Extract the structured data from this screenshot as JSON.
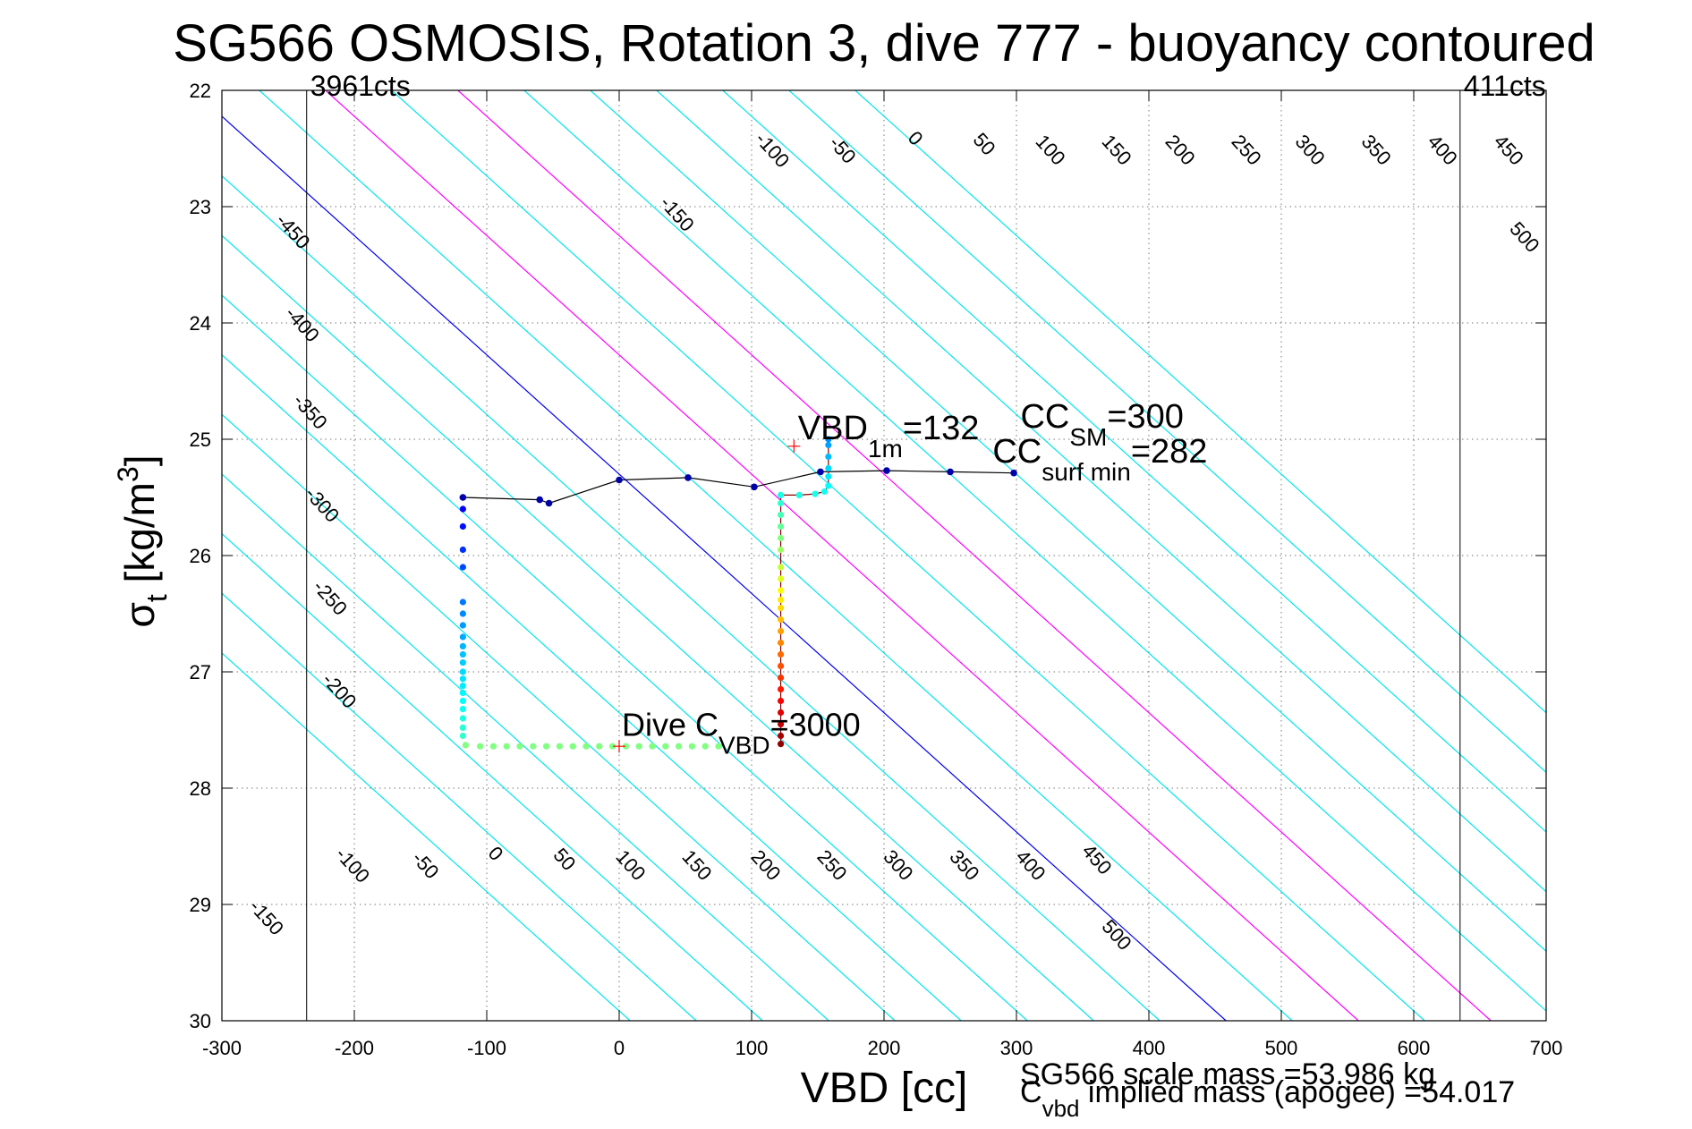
{
  "chart_data": {
    "type": "scatter",
    "title": "SG566 OSMOSIS, Rotation 3, dive 777 - buoyancy contoured",
    "xlabel": "VBD [cc]",
    "ylabel_base": "σ",
    "ylabel_sub": "t",
    "ylabel_unit": " [kg/m",
    "ylabel_sup": "3",
    "ylabel_close": "]",
    "xlim": [
      -300,
      700
    ],
    "ylim": [
      22,
      30
    ],
    "y_reversed": true,
    "grid": true,
    "x_ticks": [
      -300,
      -200,
      -100,
      0,
      100,
      200,
      300,
      400,
      500,
      600,
      700
    ],
    "x_tick_labels": [
      "-300",
      "-200",
      "-100",
      "0",
      "100",
      "200",
      "300",
      "400",
      "500",
      "600",
      "700"
    ],
    "y_ticks": [
      22,
      23,
      24,
      25,
      26,
      27,
      28,
      29,
      30
    ],
    "y_tick_labels": [
      "22",
      "23",
      "24",
      "25",
      "26",
      "27",
      "28",
      "29",
      "30"
    ],
    "contours": {
      "slope_cc_per_sigma": 97.5,
      "reference_sigma": 25.3,
      "levels": [
        -450,
        -400,
        -350,
        -300,
        -250,
        -200,
        -150,
        -100,
        -50,
        0,
        50,
        100,
        150,
        200,
        250,
        300,
        350,
        400,
        450,
        500
      ],
      "zero_level": 0,
      "highlight_levels": [
        100,
        200
      ],
      "colors": {
        "normal": "#00e5ee",
        "zero": "#0000ee",
        "highlight": "#ff00ff"
      },
      "upper_labels": [
        {
          "text": "-450",
          "x": -250,
          "y": 23.25
        },
        {
          "text": "-400",
          "x": -243,
          "y": 24.05
        },
        {
          "text": "-350",
          "x": -237,
          "y": 24.8
        },
        {
          "text": "-300",
          "x": -228,
          "y": 25.6
        },
        {
          "text": "-250",
          "x": -222,
          "y": 26.4
        },
        {
          "text": "-200",
          "x": -215,
          "y": 27.2
        },
        {
          "text": "-150",
          "x": 40,
          "y": 23.1
        },
        {
          "text": "-100",
          "x": 112,
          "y": 22.55
        },
        {
          "text": "-50",
          "x": 165,
          "y": 22.55
        },
        {
          "text": "0",
          "x": 220,
          "y": 22.45
        },
        {
          "text": "50",
          "x": 272,
          "y": 22.5
        },
        {
          "text": "100",
          "x": 322,
          "y": 22.55
        },
        {
          "text": "150",
          "x": 372,
          "y": 22.55
        },
        {
          "text": "200",
          "x": 420,
          "y": 22.55
        },
        {
          "text": "250",
          "x": 470,
          "y": 22.55
        },
        {
          "text": "300",
          "x": 518,
          "y": 22.55
        },
        {
          "text": "350",
          "x": 568,
          "y": 22.55
        },
        {
          "text": "400",
          "x": 618,
          "y": 22.55
        },
        {
          "text": "450",
          "x": 668,
          "y": 22.55
        },
        {
          "text": "500",
          "x": 680,
          "y": 23.3
        }
      ],
      "lower_labels": [
        {
          "text": "-150",
          "x": -270,
          "y": 29.15
        },
        {
          "text": "-100",
          "x": -205,
          "y": 28.7
        },
        {
          "text": "-50",
          "x": -150,
          "y": 28.7
        },
        {
          "text": "0",
          "x": -97,
          "y": 28.6
        },
        {
          "text": "50",
          "x": -45,
          "y": 28.65
        },
        {
          "text": "100",
          "x": 5,
          "y": 28.7
        },
        {
          "text": "150",
          "x": 55,
          "y": 28.7
        },
        {
          "text": "200",
          "x": 107,
          "y": 28.7
        },
        {
          "text": "250",
          "x": 157,
          "y": 28.7
        },
        {
          "text": "300",
          "x": 207,
          "y": 28.7
        },
        {
          "text": "350",
          "x": 257,
          "y": 28.7
        },
        {
          "text": "400",
          "x": 307,
          "y": 28.7
        },
        {
          "text": "450",
          "x": 357,
          "y": 28.65
        },
        {
          "text": "500",
          "x": 372,
          "y": 29.3
        }
      ]
    },
    "limit_lines": [
      {
        "x": -236,
        "label": "3961cts"
      },
      {
        "x": 635,
        "label": "411cts"
      }
    ],
    "series": [
      {
        "role": "dive",
        "points": [
          [
            -118,
            25.5
          ],
          [
            -118,
            25.6
          ],
          [
            -118,
            25.75
          ],
          [
            -118,
            25.95
          ],
          [
            -118,
            26.1
          ],
          [
            -118,
            26.4
          ],
          [
            -118,
            26.5
          ],
          [
            -118,
            26.6
          ],
          [
            -118,
            26.7
          ],
          [
            -118,
            26.78
          ],
          [
            -118,
            26.85
          ],
          [
            -118,
            26.92
          ],
          [
            -118,
            27.0
          ],
          [
            -118,
            27.06
          ],
          [
            -118,
            27.12
          ],
          [
            -118,
            27.18
          ],
          [
            -118,
            27.25
          ],
          [
            -118,
            27.32
          ],
          [
            -118,
            27.4
          ],
          [
            -118,
            27.48
          ],
          [
            -118,
            27.55
          ],
          [
            -116,
            27.63
          ],
          [
            -105,
            27.64
          ],
          [
            -95,
            27.64
          ],
          [
            -85,
            27.64
          ],
          [
            -75,
            27.64
          ],
          [
            -65,
            27.64
          ],
          [
            -55,
            27.64
          ],
          [
            -45,
            27.64
          ],
          [
            -35,
            27.64
          ],
          [
            -25,
            27.64
          ],
          [
            -15,
            27.64
          ],
          [
            -5,
            27.64
          ],
          [
            5,
            27.64
          ],
          [
            15,
            27.64
          ],
          [
            25,
            27.64
          ],
          [
            35,
            27.64
          ],
          [
            45,
            27.64
          ],
          [
            55,
            27.64
          ],
          [
            65,
            27.64
          ],
          [
            75,
            27.64
          ]
        ],
        "path_line": [
          [
            -118,
            25.5
          ],
          [
            -60,
            25.52
          ],
          [
            -53,
            25.55
          ],
          [
            0,
            25.35
          ],
          [
            52,
            25.33
          ],
          [
            102,
            25.41
          ],
          [
            152,
            25.28
          ],
          [
            202,
            25.27
          ],
          [
            250,
            25.28
          ],
          [
            298,
            25.29
          ]
        ],
        "path_points": [
          [
            -118,
            25.5
          ],
          [
            -60,
            25.52
          ],
          [
            -53,
            25.55
          ],
          [
            0,
            25.35
          ],
          [
            52,
            25.33
          ],
          [
            102,
            25.41
          ],
          [
            152,
            25.28
          ],
          [
            202,
            25.27
          ],
          [
            250,
            25.28
          ],
          [
            298,
            25.29
          ]
        ]
      },
      {
        "role": "climb",
        "points": [
          [
            122,
            27.62
          ],
          [
            122,
            27.55
          ],
          [
            122,
            27.45
          ],
          [
            122,
            27.35
          ],
          [
            122,
            27.25
          ],
          [
            122,
            27.15
          ],
          [
            122,
            27.05
          ],
          [
            122,
            26.95
          ],
          [
            122,
            26.85
          ],
          [
            122,
            26.75
          ],
          [
            122,
            26.65
          ],
          [
            122,
            26.55
          ],
          [
            122,
            26.45
          ],
          [
            122,
            26.38
          ],
          [
            122,
            26.3
          ],
          [
            122,
            26.2
          ],
          [
            122,
            26.1
          ],
          [
            122,
            25.95
          ],
          [
            122,
            25.85
          ],
          [
            122,
            25.75
          ],
          [
            122,
            25.65
          ],
          [
            122,
            25.55
          ],
          [
            122,
            25.48
          ],
          [
            136,
            25.48
          ],
          [
            148,
            25.47
          ],
          [
            155,
            25.45
          ],
          [
            158,
            25.4
          ],
          [
            158,
            25.32
          ],
          [
            158,
            25.25
          ],
          [
            158,
            25.15
          ],
          [
            158,
            25.05
          ],
          [
            158,
            25.0
          ]
        ],
        "path_line": [
          [
            122,
            27.62
          ],
          [
            122,
            25.48
          ],
          [
            136,
            25.48
          ],
          [
            148,
            25.47
          ],
          [
            155,
            25.45
          ],
          [
            158,
            25.4
          ],
          [
            158,
            25.0
          ]
        ]
      }
    ],
    "markers": [
      {
        "label": "vbd_1m",
        "x": 132,
        "y": 25.06,
        "symbol": "+"
      },
      {
        "label": "dive_cvbd",
        "x": 0,
        "y": 27.64,
        "symbol": "+"
      }
    ],
    "annotations": {
      "vbd1m": {
        "base": "VBD",
        "sub": "1m",
        "val": "=132",
        "x": 135,
        "y": 25.0
      },
      "ccsm": {
        "base": "CC",
        "sub": "SM",
        "val": "=300",
        "x": 303,
        "y": 24.9
      },
      "ccsurf": {
        "base": "CC",
        "sub": "surf min",
        "val": "=282",
        "x": 282,
        "y": 25.2
      },
      "divec": {
        "base": "Dive C",
        "sub": "VBD",
        "val": "=3000",
        "x": 2,
        "y": 27.55
      }
    },
    "footer": {
      "scale_mass": "SG566 scale mass =53.986 kg",
      "implied_base": "C",
      "implied_sub": "vbd",
      "implied_rest": " implied mass (apogee) =54.017"
    }
  }
}
